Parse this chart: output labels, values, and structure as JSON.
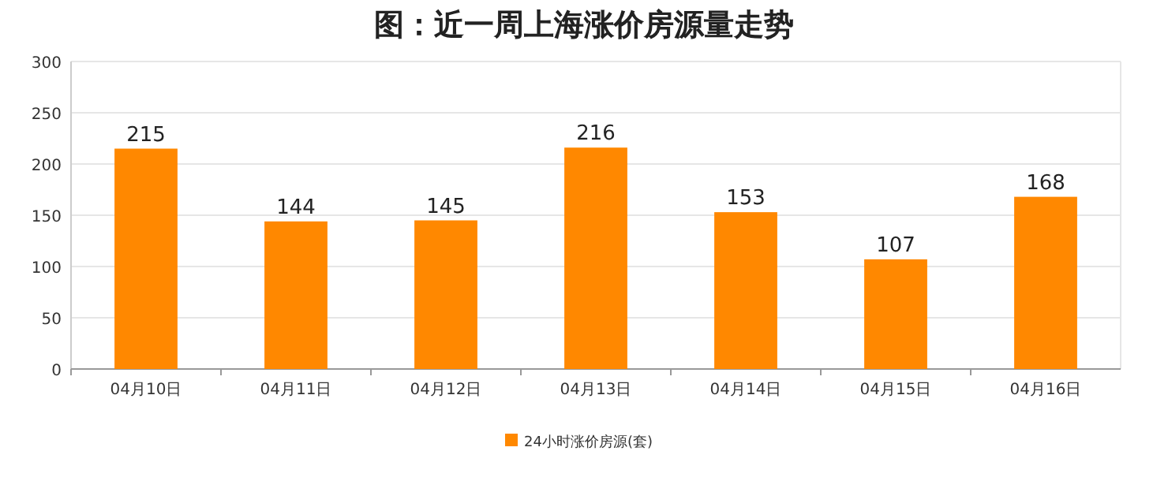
{
  "chart_data": {
    "type": "bar",
    "title": "图：近一周上海涨价房源量走势",
    "categories": [
      "04月10日",
      "04月11日",
      "04月12日",
      "04月13日",
      "04月14日",
      "04月15日",
      "04月16日"
    ],
    "series": [
      {
        "name": "24小时涨价房源(套)",
        "color": "#ff8800",
        "values": [
          215,
          144,
          145,
          216,
          153,
          107,
          168
        ]
      }
    ],
    "ylim": [
      0,
      300
    ],
    "yticks": [
      0,
      50,
      100,
      150,
      200,
      250,
      300
    ],
    "grid": "y",
    "legend": "bottom",
    "data_labels": true
  }
}
